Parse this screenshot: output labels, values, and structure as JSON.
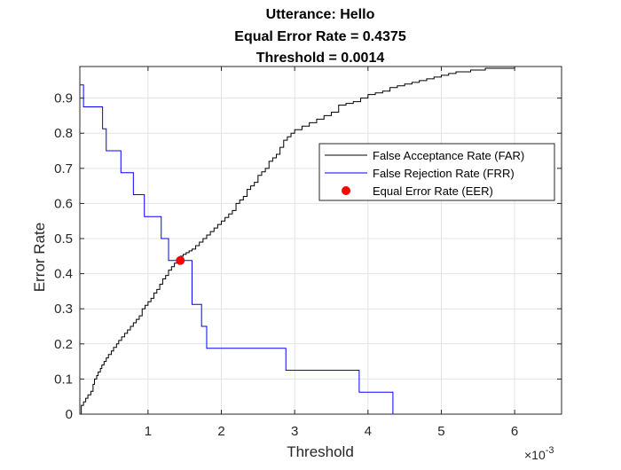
{
  "chart_data": {
    "type": "line",
    "title": [
      "Utterance: Hello",
      "Equal Error Rate = 0.4375",
      "Threshold = 0.0014"
    ],
    "xlabel": "Threshold",
    "ylabel": "Error Rate",
    "x_exponent_label": "×10",
    "x_exponent_power": "-3",
    "xlim": [
      7e-05,
      0.00664
    ],
    "ylim": [
      0,
      0.99
    ],
    "grid": true,
    "legend_location": "northeast",
    "x_ticks": [
      0.001,
      0.002,
      0.003,
      0.004,
      0.005,
      0.006
    ],
    "x_tick_labels": [
      "1",
      "2",
      "3",
      "4",
      "5",
      "6"
    ],
    "y_ticks": [
      0,
      0.1,
      0.2,
      0.3,
      0.4,
      0.5,
      0.6,
      0.7,
      0.8,
      0.9
    ],
    "y_tick_labels": [
      "0",
      "0.1",
      "0.2",
      "0.3",
      "0.4",
      "0.5",
      "0.6",
      "0.7",
      "0.8",
      "0.9"
    ],
    "series": [
      {
        "name": "False Acceptance Rate (FAR)",
        "color": "#000000",
        "style": "stairs",
        "x": [
          7e-05,
          9e-05,
          0.00012,
          0.00015,
          0.00018,
          0.00022,
          0.00025,
          0.00027,
          0.0003,
          0.00032,
          0.00035,
          0.00037,
          0.0004,
          0.00043,
          0.00046,
          0.0005,
          0.00053,
          0.00057,
          0.0006,
          0.00064,
          0.00068,
          0.00072,
          0.00076,
          0.0008,
          0.00084,
          0.00088,
          0.00092,
          0.00096,
          0.001,
          0.00104,
          0.00108,
          0.00112,
          0.00116,
          0.0012,
          0.00124,
          0.00128,
          0.00132,
          0.00136,
          0.0014,
          0.00144,
          0.00148,
          0.00152,
          0.00156,
          0.0016,
          0.00165,
          0.0017,
          0.00175,
          0.0018,
          0.00185,
          0.0019,
          0.00195,
          0.002,
          0.00205,
          0.0021,
          0.00215,
          0.0022,
          0.00225,
          0.0023,
          0.00235,
          0.0024,
          0.00245,
          0.0025,
          0.00255,
          0.0026,
          0.00265,
          0.0027,
          0.00275,
          0.0028,
          0.00285,
          0.0029,
          0.00295,
          0.003,
          0.0031,
          0.0032,
          0.0033,
          0.0034,
          0.0035,
          0.0036,
          0.0037,
          0.0038,
          0.0039,
          0.004,
          0.0041,
          0.0042,
          0.0043,
          0.0044,
          0.0045,
          0.0046,
          0.0047,
          0.0048,
          0.0049,
          0.005,
          0.0051,
          0.0052,
          0.0054,
          0.0056,
          0.0058,
          0.006,
          0.0062,
          0.0064
        ],
        "y": [
          0.0,
          0.025,
          0.035,
          0.045,
          0.055,
          0.065,
          0.085,
          0.1,
          0.11,
          0.12,
          0.13,
          0.14,
          0.15,
          0.16,
          0.17,
          0.18,
          0.19,
          0.2,
          0.21,
          0.22,
          0.23,
          0.24,
          0.25,
          0.26,
          0.27,
          0.28,
          0.3,
          0.31,
          0.32,
          0.33,
          0.345,
          0.355,
          0.37,
          0.385,
          0.395,
          0.41,
          0.42,
          0.43,
          0.44,
          0.45,
          0.455,
          0.46,
          0.465,
          0.47,
          0.48,
          0.49,
          0.5,
          0.51,
          0.52,
          0.53,
          0.54,
          0.55,
          0.56,
          0.57,
          0.58,
          0.6,
          0.61,
          0.62,
          0.64,
          0.65,
          0.66,
          0.68,
          0.69,
          0.7,
          0.72,
          0.73,
          0.74,
          0.76,
          0.78,
          0.79,
          0.8,
          0.81,
          0.82,
          0.83,
          0.84,
          0.85,
          0.86,
          0.88,
          0.885,
          0.89,
          0.9,
          0.91,
          0.915,
          0.92,
          0.93,
          0.935,
          0.94,
          0.945,
          0.95,
          0.955,
          0.96,
          0.965,
          0.97,
          0.975,
          0.98,
          0.985,
          0.985,
          0.99,
          0.99,
          0.99
        ]
      },
      {
        "name": "False Rejection Rate (FRR)",
        "color": "#0000ff",
        "style": "stairs",
        "x": [
          7e-05,
          0.00012,
          0.00038,
          0.00043,
          0.00063,
          0.0008,
          0.00095,
          0.00118,
          0.00128,
          0.00135,
          0.0016,
          0.00173,
          0.0018,
          0.00288,
          0.00388,
          0.00434,
          0.00664
        ],
        "y": [
          0.9375,
          0.875,
          0.8125,
          0.75,
          0.6875,
          0.625,
          0.5625,
          0.5,
          0.4375,
          0.4375,
          0.3125,
          0.25,
          0.1875,
          0.125,
          0.0625,
          0.0,
          0.0
        ]
      }
    ],
    "eer_point": {
      "name": "Equal Error Rate (EER)",
      "x": 0.00144,
      "y": 0.4375,
      "color": "#ff0000"
    }
  }
}
